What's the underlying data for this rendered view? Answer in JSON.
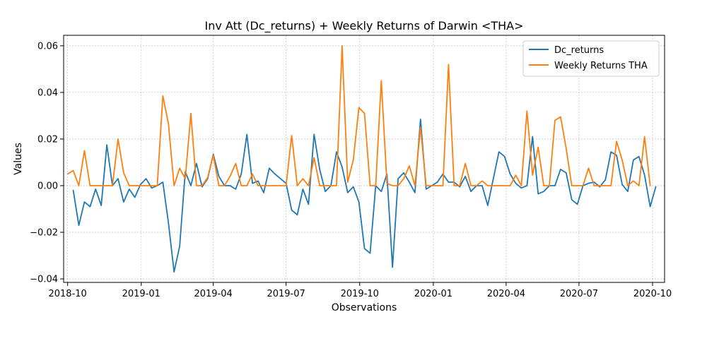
{
  "chart_data": {
    "type": "line",
    "title": "Inv Att (Dc_returns) + Weekly Returns of Darwin <THA>",
    "xlabel": "Observations",
    "ylabel": "Values",
    "xlim": [
      "2018-09-26",
      "2020-10-16"
    ],
    "ylim": [
      -0.0415,
      0.0645
    ],
    "x_ticks": [
      {
        "date": "2018-10-01",
        "label": "2018-10"
      },
      {
        "date": "2019-01-01",
        "label": "2019-01"
      },
      {
        "date": "2019-04-01",
        "label": "2019-04"
      },
      {
        "date": "2019-07-01",
        "label": "2019-07"
      },
      {
        "date": "2019-10-01",
        "label": "2019-10"
      },
      {
        "date": "2020-01-01",
        "label": "2020-01"
      },
      {
        "date": "2020-04-01",
        "label": "2020-04"
      },
      {
        "date": "2020-07-01",
        "label": "2020-07"
      },
      {
        "date": "2020-10-01",
        "label": "2020-10"
      }
    ],
    "y_ticks": [
      {
        "value": -0.04,
        "label": "−0.04"
      },
      {
        "value": -0.02,
        "label": "−0.02"
      },
      {
        "value": 0.0,
        "label": "0.00"
      },
      {
        "value": 0.02,
        "label": "0.02"
      },
      {
        "value": 0.04,
        "label": "0.04"
      },
      {
        "value": 0.06,
        "label": "0.06"
      }
    ],
    "grid": true,
    "legend_position": "top-right",
    "series": [
      {
        "name": "Dc_returns",
        "color": "#1f77b4",
        "points": [
          [
            "2018-10-08",
            -0.002
          ],
          [
            "2018-10-15",
            -0.017
          ],
          [
            "2018-10-22",
            -0.007
          ],
          [
            "2018-10-29",
            -0.009
          ],
          [
            "2018-11-05",
            -0.0015
          ],
          [
            "2018-11-12",
            -0.0085
          ],
          [
            "2018-11-19",
            0.0175
          ],
          [
            "2018-11-26",
            0.0
          ],
          [
            "2018-12-03",
            0.003
          ],
          [
            "2018-12-10",
            -0.007
          ],
          [
            "2018-12-17",
            -0.0015
          ],
          [
            "2018-12-24",
            -0.005
          ],
          [
            "2018-12-31",
            0.0005
          ],
          [
            "2019-01-07",
            0.003
          ],
          [
            "2019-01-14",
            -0.001
          ],
          [
            "2019-01-21",
            0.0
          ],
          [
            "2019-01-28",
            0.0015
          ],
          [
            "2019-02-04",
            -0.016
          ],
          [
            "2019-02-11",
            -0.037
          ],
          [
            "2019-02-18",
            -0.026
          ],
          [
            "2019-02-25",
            0.006
          ],
          [
            "2019-03-04",
            0.0
          ],
          [
            "2019-03-11",
            0.0095
          ],
          [
            "2019-03-18",
            -0.0005
          ],
          [
            "2019-03-25",
            0.003
          ],
          [
            "2019-04-01",
            0.0135
          ],
          [
            "2019-04-08",
            0.004
          ],
          [
            "2019-04-15",
            0.0
          ],
          [
            "2019-04-22",
            0.0
          ],
          [
            "2019-04-29",
            -0.0015
          ],
          [
            "2019-05-06",
            0.005
          ],
          [
            "2019-05-13",
            0.022
          ],
          [
            "2019-05-20",
            0.001
          ],
          [
            "2019-05-27",
            0.002
          ],
          [
            "2019-06-03",
            -0.003
          ],
          [
            "2019-06-10",
            0.0075
          ],
          [
            "2019-06-17",
            0.005
          ],
          [
            "2019-06-24",
            0.003
          ],
          [
            "2019-07-01",
            0.001
          ],
          [
            "2019-07-08",
            -0.0105
          ],
          [
            "2019-07-15",
            -0.0125
          ],
          [
            "2019-07-22",
            -0.0015
          ],
          [
            "2019-07-29",
            -0.008
          ],
          [
            "2019-08-05",
            0.022
          ],
          [
            "2019-08-12",
            0.007
          ],
          [
            "2019-08-19",
            -0.0025
          ],
          [
            "2019-08-26",
            0.0
          ],
          [
            "2019-09-02",
            0.0145
          ],
          [
            "2019-09-09",
            0.008
          ],
          [
            "2019-09-16",
            -0.003
          ],
          [
            "2019-09-23",
            -0.0005
          ],
          [
            "2019-09-30",
            -0.007
          ],
          [
            "2019-10-07",
            -0.027
          ],
          [
            "2019-10-14",
            -0.029
          ],
          [
            "2019-10-21",
            0.0
          ],
          [
            "2019-10-28",
            -0.0025
          ],
          [
            "2019-11-04",
            0.005
          ],
          [
            "2019-11-11",
            -0.035
          ],
          [
            "2019-11-18",
            0.003
          ],
          [
            "2019-11-25",
            0.0055
          ],
          [
            "2019-12-02",
            0.0015
          ],
          [
            "2019-12-09",
            -0.003
          ],
          [
            "2019-12-16",
            0.0285
          ],
          [
            "2019-12-23",
            -0.0015
          ],
          [
            "2019-12-30",
            0.0
          ],
          [
            "2020-01-06",
            0.0015
          ],
          [
            "2020-01-13",
            0.005
          ],
          [
            "2020-01-20",
            0.0015
          ],
          [
            "2020-01-27",
            0.0015
          ],
          [
            "2020-02-03",
            -0.0005
          ],
          [
            "2020-02-10",
            0.004
          ],
          [
            "2020-02-17",
            -0.0025
          ],
          [
            "2020-02-24",
            0.0
          ],
          [
            "2020-03-02",
            0.0
          ],
          [
            "2020-03-09",
            -0.0085
          ],
          [
            "2020-03-16",
            0.003
          ],
          [
            "2020-03-23",
            0.0145
          ],
          [
            "2020-03-30",
            0.0125
          ],
          [
            "2020-04-06",
            0.005
          ],
          [
            "2020-04-13",
            0.001
          ],
          [
            "2020-04-20",
            -0.001
          ],
          [
            "2020-04-27",
            0.0
          ],
          [
            "2020-05-04",
            0.021
          ],
          [
            "2020-05-11",
            -0.0035
          ],
          [
            "2020-05-18",
            -0.0025
          ],
          [
            "2020-05-25",
            0.0
          ],
          [
            "2020-06-01",
            0.0
          ],
          [
            "2020-06-08",
            0.007
          ],
          [
            "2020-06-15",
            0.0055
          ],
          [
            "2020-06-22",
            -0.006
          ],
          [
            "2020-06-29",
            -0.008
          ],
          [
            "2020-07-06",
            0.0
          ],
          [
            "2020-07-13",
            0.001
          ],
          [
            "2020-07-20",
            0.0015
          ],
          [
            "2020-07-27",
            -0.0005
          ],
          [
            "2020-08-03",
            0.0025
          ],
          [
            "2020-08-10",
            0.0145
          ],
          [
            "2020-08-17",
            0.013
          ],
          [
            "2020-08-24",
            0.0005
          ],
          [
            "2020-08-31",
            -0.0025
          ],
          [
            "2020-09-07",
            0.011
          ],
          [
            "2020-09-14",
            0.0125
          ],
          [
            "2020-09-21",
            0.0045
          ],
          [
            "2020-09-28",
            -0.009
          ],
          [
            "2020-10-05",
            -0.0005
          ]
        ]
      },
      {
        "name": "Weekly Returns THA",
        "color": "#ff7f0e",
        "points": [
          [
            "2018-10-01",
            0.005
          ],
          [
            "2018-10-08",
            0.0065
          ],
          [
            "2018-10-15",
            0.0
          ],
          [
            "2018-10-22",
            0.015
          ],
          [
            "2018-10-29",
            0.0
          ],
          [
            "2018-11-05",
            0.0
          ],
          [
            "2018-11-12",
            0.0
          ],
          [
            "2018-11-19",
            0.0
          ],
          [
            "2018-11-26",
            0.0
          ],
          [
            "2018-12-03",
            0.02
          ],
          [
            "2018-12-10",
            0.0055
          ],
          [
            "2018-12-17",
            0.0
          ],
          [
            "2018-12-24",
            0.0
          ],
          [
            "2018-12-31",
            0.0
          ],
          [
            "2019-01-07",
            0.0
          ],
          [
            "2019-01-14",
            0.0
          ],
          [
            "2019-01-21",
            0.0
          ],
          [
            "2019-01-28",
            0.0385
          ],
          [
            "2019-02-04",
            0.0265
          ],
          [
            "2019-02-11",
            0.0
          ],
          [
            "2019-02-18",
            0.0075
          ],
          [
            "2019-02-25",
            0.003
          ],
          [
            "2019-03-04",
            0.031
          ],
          [
            "2019-03-11",
            0.0
          ],
          [
            "2019-03-18",
            0.0
          ],
          [
            "2019-03-25",
            0.0035
          ],
          [
            "2019-04-01",
            0.013
          ],
          [
            "2019-04-08",
            0.0
          ],
          [
            "2019-04-15",
            0.0
          ],
          [
            "2019-04-22",
            0.004
          ],
          [
            "2019-04-29",
            0.0095
          ],
          [
            "2019-05-06",
            0.0
          ],
          [
            "2019-05-13",
            0.0
          ],
          [
            "2019-05-20",
            0.005
          ],
          [
            "2019-05-27",
            0.0
          ],
          [
            "2019-06-03",
            0.0
          ],
          [
            "2019-06-10",
            0.0
          ],
          [
            "2019-06-17",
            0.0
          ],
          [
            "2019-06-24",
            0.0
          ],
          [
            "2019-07-01",
            0.0
          ],
          [
            "2019-07-08",
            0.0215
          ],
          [
            "2019-07-15",
            0.0
          ],
          [
            "2019-07-22",
            0.003
          ],
          [
            "2019-07-29",
            0.0
          ],
          [
            "2019-08-05",
            0.012
          ],
          [
            "2019-08-12",
            0.0
          ],
          [
            "2019-08-19",
            0.0
          ],
          [
            "2019-08-26",
            0.0
          ],
          [
            "2019-09-02",
            0.0
          ],
          [
            "2019-09-09",
            0.06
          ],
          [
            "2019-09-16",
            0.0015
          ],
          [
            "2019-09-23",
            0.011
          ],
          [
            "2019-09-30",
            0.0335
          ],
          [
            "2019-10-07",
            0.031
          ],
          [
            "2019-10-14",
            0.0
          ],
          [
            "2019-10-21",
            0.0
          ],
          [
            "2019-10-28",
            0.045
          ],
          [
            "2019-11-04",
            0.001
          ],
          [
            "2019-11-11",
            0.0
          ],
          [
            "2019-11-18",
            0.0
          ],
          [
            "2019-11-25",
            0.003
          ],
          [
            "2019-12-02",
            0.0085
          ],
          [
            "2019-12-09",
            0.0
          ],
          [
            "2019-12-16",
            0.025
          ],
          [
            "2019-12-23",
            0.0
          ],
          [
            "2019-12-30",
            0.0
          ],
          [
            "2020-01-06",
            0.0
          ],
          [
            "2020-01-13",
            0.0
          ],
          [
            "2020-01-20",
            0.052
          ],
          [
            "2020-01-27",
            0.0
          ],
          [
            "2020-02-03",
            0.0
          ],
          [
            "2020-02-10",
            0.0095
          ],
          [
            "2020-02-17",
            0.0
          ],
          [
            "2020-02-24",
            0.0
          ],
          [
            "2020-03-02",
            0.002
          ],
          [
            "2020-03-09",
            0.0
          ],
          [
            "2020-03-16",
            0.0
          ],
          [
            "2020-03-23",
            0.0
          ],
          [
            "2020-03-30",
            0.0
          ],
          [
            "2020-04-06",
            0.0
          ],
          [
            "2020-04-13",
            0.0045
          ],
          [
            "2020-04-20",
            0.0
          ],
          [
            "2020-04-27",
            0.032
          ],
          [
            "2020-05-04",
            0.0045
          ],
          [
            "2020-05-11",
            0.0165
          ],
          [
            "2020-05-18",
            0.0
          ],
          [
            "2020-05-25",
            0.0
          ],
          [
            "2020-06-01",
            0.028
          ],
          [
            "2020-06-08",
            0.0295
          ],
          [
            "2020-06-15",
            0.016
          ],
          [
            "2020-06-22",
            0.0
          ],
          [
            "2020-06-29",
            0.0
          ],
          [
            "2020-07-06",
            0.0
          ],
          [
            "2020-07-13",
            0.0075
          ],
          [
            "2020-07-20",
            0.0
          ],
          [
            "2020-07-27",
            0.0
          ],
          [
            "2020-08-03",
            0.0
          ],
          [
            "2020-08-10",
            0.0
          ],
          [
            "2020-08-17",
            0.019
          ],
          [
            "2020-08-24",
            0.011
          ],
          [
            "2020-08-31",
            0.0
          ],
          [
            "2020-09-07",
            0.002
          ],
          [
            "2020-09-14",
            0.0
          ],
          [
            "2020-09-21",
            0.021
          ],
          [
            "2020-09-28",
            0.0
          ]
        ]
      }
    ]
  }
}
